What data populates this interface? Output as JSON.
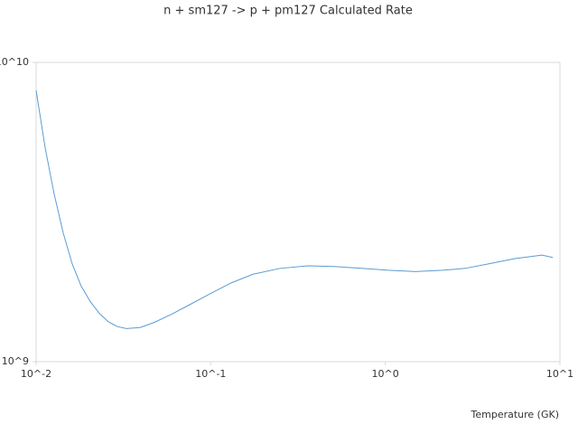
{
  "chart_data": {
    "type": "line",
    "title": "n + sm127 -> p + pm127 Calculated Rate",
    "x_label": "Temperature (GK)",
    "xscale": "log",
    "yscale": "log",
    "xlim": [
      0.01,
      10
    ],
    "ylim": [
      1000000000,
      10000000000
    ],
    "xticks": [
      {
        "value": 0.01,
        "label": "10^-2"
      },
      {
        "value": 0.1,
        "label": "10^-1"
      },
      {
        "value": 1,
        "label": "10^0"
      },
      {
        "value": 10,
        "label": "10^1"
      }
    ],
    "yticks": [
      {
        "value": 1000000000,
        "label": "10^9"
      },
      {
        "value": 10000000000,
        "label": "10^10"
      }
    ],
    "x": [
      0.01,
      0.0113,
      0.0127,
      0.0143,
      0.0161,
      0.0181,
      0.0204,
      0.023,
      0.0259,
      0.0292,
      0.0329,
      0.0394,
      0.0471,
      0.0597,
      0.0757,
      0.0961,
      0.13,
      0.175,
      0.25,
      0.36,
      0.51,
      0.73,
      1.04,
      1.49,
      2.13,
      2.86,
      3.86,
      5.52,
      7.89,
      9.1
    ],
    "series": [
      {
        "color": "#5b9bd5",
        "values": [
          8060000000,
          5130000000,
          3620000000,
          2690000000,
          2120000000,
          1790000000,
          1590000000,
          1450000000,
          1360000000,
          1310000000,
          1290000000,
          1300000000,
          1350000000,
          1440000000,
          1550000000,
          1670000000,
          1830000000,
          1960000000,
          2050000000,
          2090000000,
          2080000000,
          2050000000,
          2020000000,
          2000000000,
          2020000000,
          2050000000,
          2120000000,
          2210000000,
          2270000000,
          2230000000
        ]
      }
    ]
  }
}
